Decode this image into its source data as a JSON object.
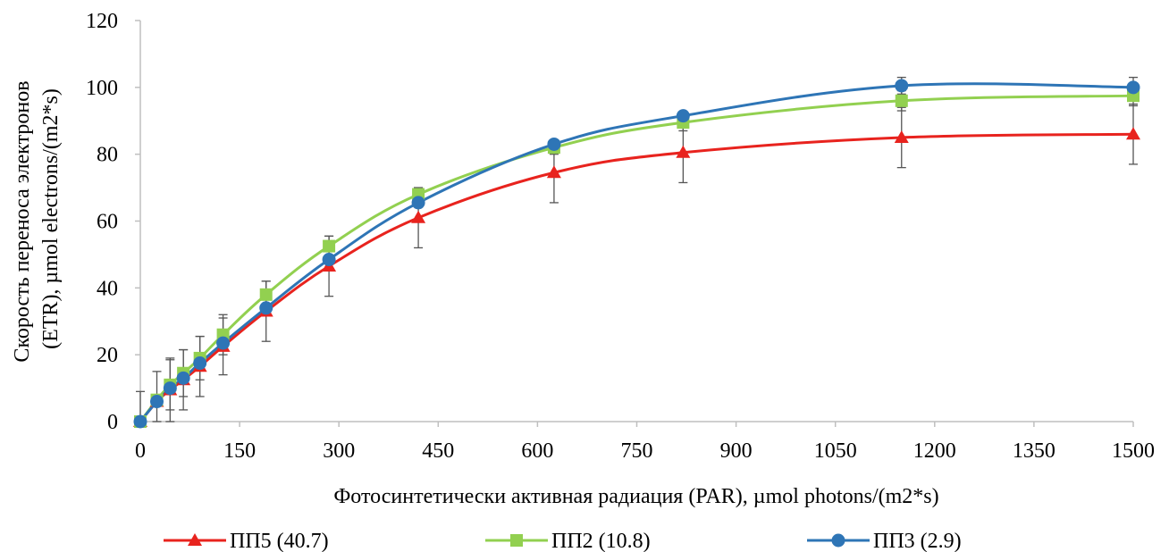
{
  "chart_data": {
    "type": "line",
    "title": "",
    "xlabel": "Фотосинтетически активная радиация (PAR), µmol photons/(m2*s)",
    "ylabel_lines": [
      "Скорость переноса электронов",
      "(ETR), µmol electrons/(m2*s)"
    ],
    "xlim": [
      0,
      1500
    ],
    "ylim": [
      0,
      120
    ],
    "xticks": [
      0,
      150,
      300,
      450,
      600,
      750,
      900,
      1050,
      1200,
      1350,
      1500
    ],
    "yticks": [
      0,
      20,
      40,
      60,
      80,
      100,
      120
    ],
    "x": [
      0,
      25,
      45,
      65,
      90,
      125,
      190,
      285,
      420,
      625,
      820,
      1150,
      1500
    ],
    "grid": false,
    "legend_position": "bottom",
    "series": [
      {
        "name": "ПП5 (40.7)",
        "color": "#e8231e",
        "marker": "triangle",
        "values": [
          0,
          6,
          9.5,
          12.5,
          16.5,
          22.5,
          33,
          46.5,
          61,
          74.5,
          80.5,
          85,
          86
        ],
        "errors": [
          0,
          0,
          9.5,
          9,
          9,
          8.5,
          9,
          9,
          9,
          9,
          9,
          9,
          9
        ]
      },
      {
        "name": "ПП2 (10.8)",
        "color": "#92d050",
        "marker": "square",
        "values": [
          0,
          6.5,
          11,
          14.5,
          19,
          26,
          38,
          52.5,
          68,
          82,
          89.5,
          96,
          97.5
        ],
        "errors": [
          9,
          8.5,
          7.5,
          7,
          6.5,
          6,
          4,
          3,
          2,
          2,
          2.5,
          3,
          3
        ]
      },
      {
        "name": "ПП3 (2.9)",
        "color": "#2e75b6",
        "marker": "circle",
        "values": [
          0,
          6,
          10,
          13,
          17.5,
          23.5,
          34,
          48.5,
          65.5,
          83,
          91.5,
          100.5,
          100
        ],
        "errors": [
          0,
          0,
          0,
          0,
          0,
          0,
          0,
          0,
          0,
          0,
          0,
          2.5,
          3
        ]
      }
    ]
  }
}
